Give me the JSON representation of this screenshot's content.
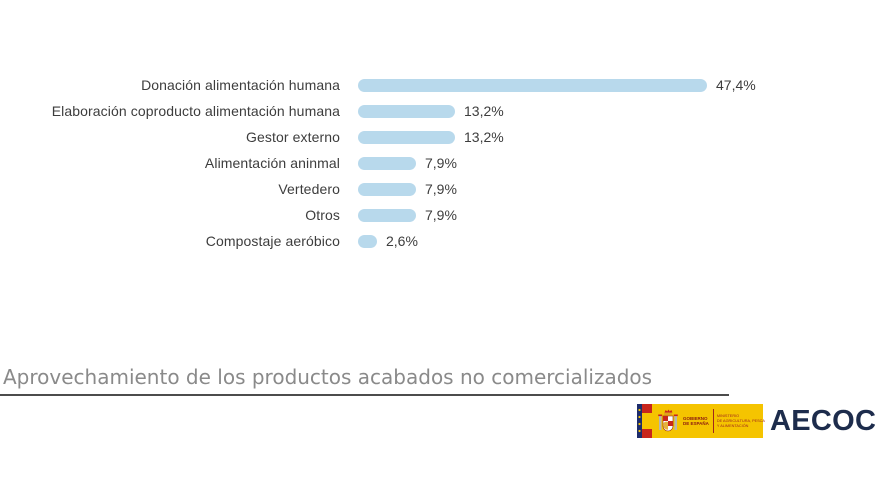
{
  "chart_data": {
    "type": "bar",
    "orientation": "horizontal",
    "title": "Aprovechamiento de los productos acabados no comercializados",
    "categories": [
      "Donación alimentación humana",
      "Elaboración coproducto alimentación humana",
      "Gestor externo",
      "Alimentación aninmal",
      "Vertedero",
      "Otros",
      "Compostaje aeróbico"
    ],
    "values": [
      47.4,
      13.2,
      13.2,
      7.9,
      7.9,
      7.9,
      2.6
    ],
    "value_labels": [
      "47,4%",
      "13,2%",
      "13,2%",
      "7,9%",
      "7,9%",
      "7,9%",
      "2,6%"
    ],
    "xlabel": "",
    "ylabel": "",
    "xlim": [
      0,
      50
    ],
    "grid": false,
    "legend": "none",
    "bar_color": "#b8d9ec",
    "label_color": "#3d3d3d",
    "title_color": "#8a8a8a"
  },
  "footer": {
    "gov_logo": {
      "gobierno_line1": "GOBIERNO",
      "gobierno_line2": "DE ESPAÑA",
      "ministry_line1": "MINISTERIO",
      "ministry_line2": "DE AGRICULTURA, PESCA",
      "ministry_line3": "Y ALIMENTACIÓN",
      "plate_color": "#f5c400",
      "text_color": "#a0261c"
    },
    "aecoc_logo": {
      "text": "AECOC",
      "color": "#1d2c4c"
    }
  }
}
